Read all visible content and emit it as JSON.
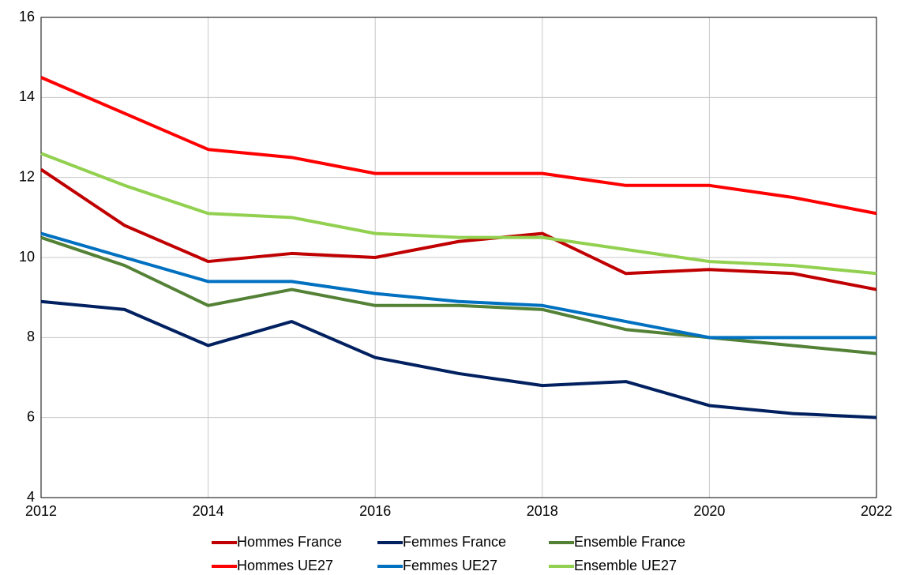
{
  "chart_data": {
    "type": "line",
    "x": [
      2012,
      2013,
      2014,
      2015,
      2016,
      2017,
      2018,
      2019,
      2020,
      2021,
      2022
    ],
    "series": [
      {
        "name": "Hommes France",
        "color": "#c00000",
        "values": [
          12.2,
          10.8,
          9.9,
          10.1,
          10.0,
          10.4,
          10.6,
          9.6,
          9.7,
          9.6,
          9.2
        ]
      },
      {
        "name": "Femmes France",
        "color": "#002060",
        "values": [
          8.9,
          8.7,
          7.8,
          8.4,
          7.5,
          7.1,
          6.8,
          6.9,
          6.3,
          6.1,
          6.0
        ]
      },
      {
        "name": "Ensemble France",
        "color": "#538135",
        "values": [
          10.5,
          9.8,
          8.8,
          9.2,
          8.8,
          8.8,
          8.7,
          8.2,
          8.0,
          7.8,
          7.6
        ]
      },
      {
        "name": "Hommes UE27",
        "color": "#ff0000",
        "values": [
          14.5,
          13.6,
          12.7,
          12.5,
          12.1,
          12.1,
          12.1,
          11.8,
          11.8,
          11.5,
          11.1
        ]
      },
      {
        "name": "Femmes UE27",
        "color": "#0070c0",
        "values": [
          10.6,
          10.0,
          9.4,
          9.4,
          9.1,
          8.9,
          8.8,
          8.4,
          8.0,
          8.0,
          8.0
        ]
      },
      {
        "name": "Ensemble UE27",
        "color": "#92d050",
        "values": [
          12.6,
          11.8,
          11.1,
          11.0,
          10.6,
          10.5,
          10.5,
          10.2,
          9.9,
          9.8,
          9.6
        ]
      }
    ],
    "xlim": [
      2012,
      2022
    ],
    "xticks": [
      2012,
      2014,
      2016,
      2018,
      2020,
      2022
    ],
    "ylim": [
      4,
      16
    ],
    "yticks": [
      4,
      6,
      8,
      10,
      12,
      14,
      16
    ],
    "grid": true,
    "legend": "bottom"
  }
}
